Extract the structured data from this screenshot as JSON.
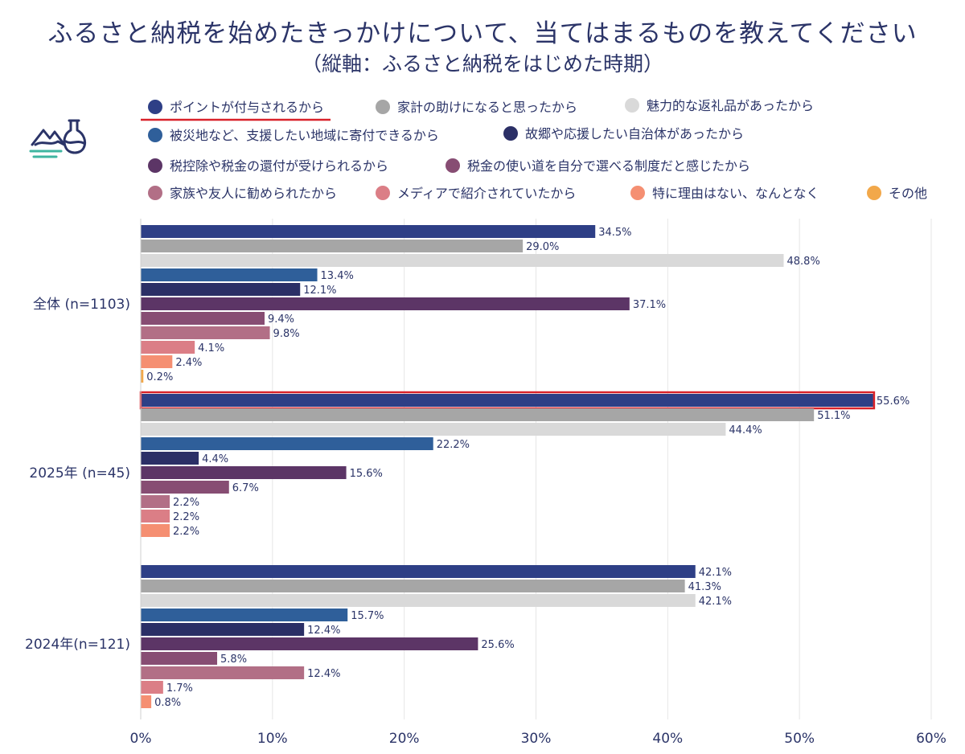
{
  "title": "ふるさと納税を始めたきっかけについて、当てはまるものを教えてください",
  "subtitle": "（縦軸：ふるさと納税をはじめた時期）",
  "icons": {
    "logo": "lab-flask-landscape-icon"
  },
  "chart_data": {
    "type": "bar",
    "orientation": "horizontal",
    "title": "ふるさと納税を始めたきっかけについて、当てはまるものを教えてください",
    "subtitle": "（縦軸：ふるさと納税をはじめた時期）",
    "categories": [
      "全体 (n=1103)",
      "2025年 (n=45)",
      "2024年(n=121)"
    ],
    "xlim": [
      0,
      60
    ],
    "xticks": [
      "0%",
      "10%",
      "20%",
      "30%",
      "40%",
      "50%",
      "60%"
    ],
    "grid": true,
    "legend_position": "top",
    "highlight": {
      "legend_index": 0,
      "category_index": 1,
      "series_index": 0,
      "color": "#d9222a"
    },
    "series": [
      {
        "name": "ポイントが付与されるから",
        "color": "#2e3f86",
        "values": [
          34.5,
          55.6,
          42.1
        ]
      },
      {
        "name": "家計の助けになると思ったから",
        "color": "#a6a6a6",
        "values": [
          29.0,
          51.1,
          41.3
        ]
      },
      {
        "name": "魅力的な返礼品があったから",
        "color": "#d9d9d9",
        "values": [
          48.8,
          44.4,
          42.1
        ]
      },
      {
        "name": "被災地など、支援したい地域に寄付できるから",
        "color": "#2f5f9a",
        "values": [
          13.4,
          22.2,
          15.7
        ]
      },
      {
        "name": "故郷や応援したい自治体があったから",
        "color": "#2b2f66",
        "values": [
          12.1,
          4.4,
          12.4
        ]
      },
      {
        "name": "税控除や税金の還付が受けられるから",
        "color": "#5c3566",
        "values": [
          37.1,
          15.6,
          25.6
        ]
      },
      {
        "name": "税金の使い道を自分で選べる制度だと感じたから",
        "color": "#874d73",
        "values": [
          9.4,
          6.7,
          5.8
        ]
      },
      {
        "name": "家族や友人に勧められたから",
        "color": "#b26f86",
        "values": [
          9.8,
          2.2,
          12.4
        ]
      },
      {
        "name": "メディアで紹介されていたから",
        "color": "#db7e86",
        "values": [
          4.1,
          2.2,
          1.7
        ]
      },
      {
        "name": "特に理由はない、なんとなく",
        "color": "#f58f72",
        "values": [
          2.4,
          2.2,
          0.8
        ]
      },
      {
        "name": "その他",
        "color": "#f2a84a",
        "values": [
          0.2,
          null,
          null
        ]
      }
    ]
  }
}
